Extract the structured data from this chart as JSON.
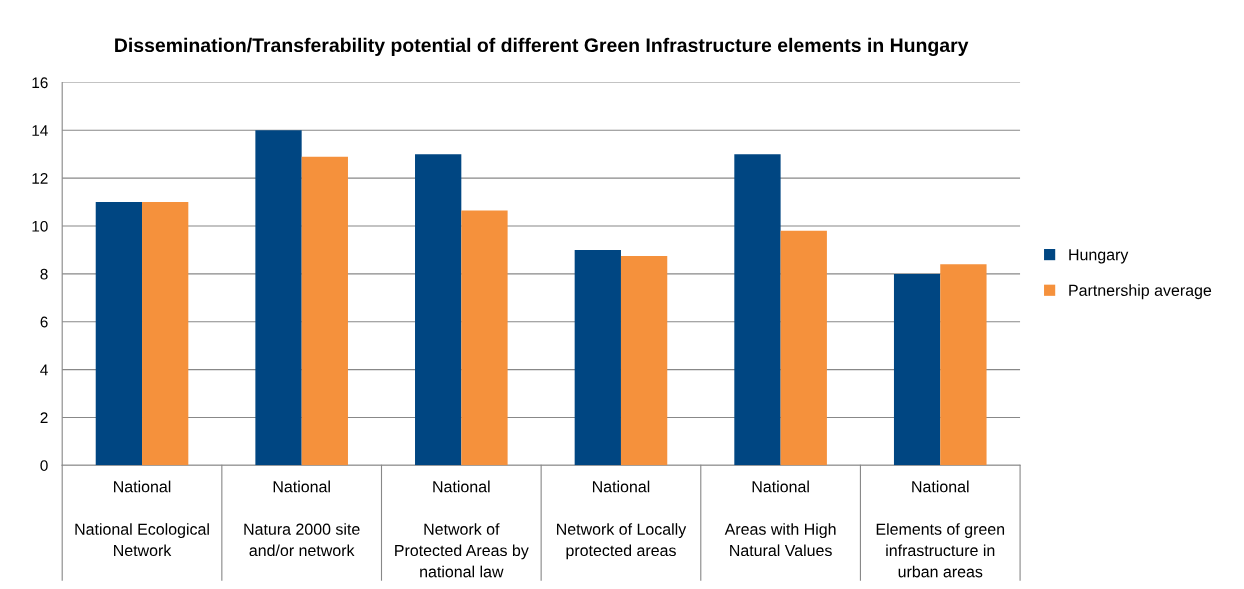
{
  "chart_data": {
    "type": "bar",
    "title": "Dissemination/Transferability potential of different Green Infrastructure elements in Hungary",
    "categories": [
      "National\n\nNational Ecological\nNetwork",
      "National\n\nNatura 2000 site\nand/or network",
      "National\n\nNetwork of\nProtected Areas by\nnational law",
      "National\n\nNetwork of Locally\nprotected areas",
      "National\n\nAreas with High\nNatural Values",
      "National\n\nElements of green\ninfrastructure in\nurban areas"
    ],
    "series": [
      {
        "name": "Hungary",
        "color": "#004682",
        "values": [
          11,
          14,
          13,
          9,
          13,
          8
        ]
      },
      {
        "name": "Partnership average",
        "color": "#f5913c",
        "values": [
          11,
          12.9,
          10.65,
          8.75,
          9.8,
          8.4
        ]
      }
    ],
    "ylim": [
      0,
      16
    ],
    "yticks": [
      0,
      2,
      4,
      6,
      8,
      10,
      12,
      14,
      16
    ],
    "grid": "y",
    "legend": "right"
  }
}
